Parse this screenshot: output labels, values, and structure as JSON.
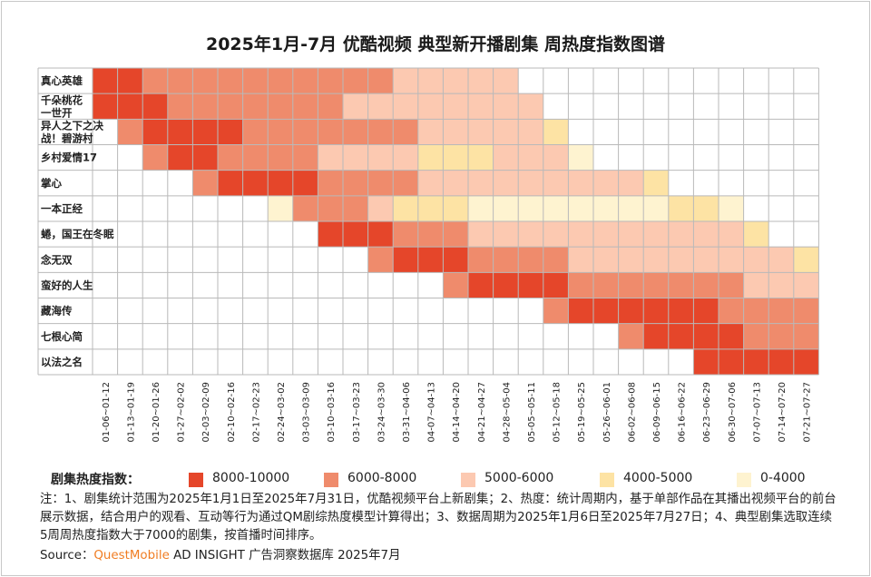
{
  "title": "2025年1月-7月 优酷视频 典型新开播剧集 周热度指数图谱",
  "chart_data": {
    "type": "heatmap",
    "rows": [
      [
        "真心英雄"
      ],
      [
        "千朵桃花",
        "一世开"
      ],
      [
        "异人之下之决",
        "战！碧游村"
      ],
      [
        "乡村爱情17"
      ],
      [
        "掌心"
      ],
      [
        "一本正经"
      ],
      [
        "蜷，国王在冬眠"
      ],
      [
        "念无双"
      ],
      [
        "蛮好的人生"
      ],
      [
        "藏海传"
      ],
      [
        "七根心简"
      ],
      [
        "以法之名"
      ]
    ],
    "columns": [
      "01-06~01-12",
      "01-13~01-19",
      "01-20~01-26",
      "01-27~02-02",
      "02-03~02-09",
      "02-10~02-16",
      "02-17~02-23",
      "02-24~03-02",
      "03-03~03-09",
      "03-10~03-16",
      "03-17~03-23",
      "03-24~03-30",
      "03-31~04-06",
      "04-07~04-13",
      "04-14~04-20",
      "04-21~04-27",
      "04-28~05-04",
      "05-05~05-11",
      "05-12~05-18",
      "05-19~05-25",
      "05-26~06-01",
      "06-02~06-08",
      "06-09~06-15",
      "06-16~06-22",
      "06-23~06-29",
      "06-30~07-06",
      "07-07~07-13",
      "07-14~07-20",
      "07-21~07-27"
    ],
    "levels": [
      {
        "label": "8000-10000",
        "color": "#e5462a"
      },
      {
        "label": "6000-8000",
        "color": "#ef8b6c"
      },
      {
        "label": "5000-6000",
        "color": "#fcc9b1"
      },
      {
        "label": "4000-5000",
        "color": "#fde3a4"
      },
      {
        "label": "0-4000",
        "color": "#fef3d0"
      }
    ],
    "level_index": [
      [
        0,
        0,
        1,
        1,
        1,
        1,
        1,
        1,
        1,
        1,
        1,
        1,
        2,
        2,
        2,
        2,
        2,
        null,
        null,
        null,
        null,
        null,
        null,
        null,
        null,
        null,
        null,
        null,
        null
      ],
      [
        0,
        0,
        0,
        1,
        1,
        1,
        1,
        1,
        1,
        1,
        2,
        2,
        2,
        2,
        2,
        2,
        2,
        2,
        null,
        null,
        null,
        null,
        null,
        null,
        null,
        null,
        null,
        null,
        null
      ],
      [
        null,
        1,
        0,
        0,
        0,
        0,
        1,
        1,
        1,
        1,
        1,
        1,
        1,
        2,
        2,
        2,
        2,
        2,
        3,
        null,
        null,
        null,
        null,
        null,
        null,
        null,
        null,
        null,
        null
      ],
      [
        null,
        null,
        1,
        0,
        0,
        1,
        1,
        1,
        1,
        2,
        2,
        2,
        2,
        3,
        3,
        3,
        2,
        2,
        2,
        4,
        null,
        null,
        null,
        null,
        null,
        null,
        null,
        null,
        null
      ],
      [
        null,
        null,
        null,
        null,
        1,
        0,
        0,
        0,
        0,
        1,
        1,
        1,
        1,
        2,
        2,
        2,
        2,
        2,
        2,
        2,
        2,
        2,
        3,
        null,
        null,
        null,
        null,
        null,
        null
      ],
      [
        null,
        null,
        null,
        null,
        null,
        null,
        null,
        4,
        1,
        1,
        1,
        2,
        3,
        3,
        3,
        4,
        4,
        4,
        4,
        4,
        4,
        4,
        4,
        3,
        3,
        4,
        null,
        null,
        null
      ],
      [
        null,
        null,
        null,
        null,
        null,
        null,
        null,
        null,
        null,
        0,
        0,
        0,
        1,
        1,
        1,
        2,
        2,
        2,
        2,
        2,
        2,
        2,
        2,
        2,
        2,
        2,
        3,
        null,
        null
      ],
      [
        null,
        null,
        null,
        null,
        null,
        null,
        null,
        null,
        null,
        null,
        null,
        1,
        0,
        0,
        0,
        1,
        1,
        1,
        1,
        2,
        2,
        2,
        2,
        2,
        2,
        2,
        2,
        2,
        3
      ],
      [
        null,
        null,
        null,
        null,
        null,
        null,
        null,
        null,
        null,
        null,
        null,
        null,
        null,
        null,
        1,
        0,
        0,
        0,
        0,
        1,
        1,
        1,
        1,
        1,
        1,
        1,
        2,
        2,
        2
      ],
      [
        null,
        null,
        null,
        null,
        null,
        null,
        null,
        null,
        null,
        null,
        null,
        null,
        null,
        null,
        null,
        null,
        null,
        null,
        1,
        0,
        0,
        0,
        0,
        0,
        0,
        1,
        1,
        1,
        1
      ],
      [
        null,
        null,
        null,
        null,
        null,
        null,
        null,
        null,
        null,
        null,
        null,
        null,
        null,
        null,
        null,
        null,
        null,
        null,
        null,
        null,
        null,
        1,
        0,
        0,
        0,
        0,
        1,
        1,
        1
      ],
      [
        null,
        null,
        null,
        null,
        null,
        null,
        null,
        null,
        null,
        null,
        null,
        null,
        null,
        null,
        null,
        null,
        null,
        null,
        null,
        null,
        null,
        null,
        null,
        null,
        0,
        0,
        0,
        0,
        0
      ]
    ]
  },
  "legend": {
    "title": "剧集热度指数："
  },
  "note": "注：1、剧集统计范围为2025年1月1日至2025年7月31日，优酷视频平台上新剧集；2、热度：统计周期内，基于单部作品在其播出视频平台的前台展示数据，结合用户的观看、互动等行为通过QM剧综热度模型计算得出；3、数据周期为2025年1月6日至2025年7月27日；4、典型剧集选取连续5周周热度指数大于7000的剧集，按首播时间排序。",
  "source": {
    "prefix": "Source：",
    "brand": "QuestMobile",
    "suffix": " AD INSIGHT 广告洞察数据库 2025年7月"
  }
}
